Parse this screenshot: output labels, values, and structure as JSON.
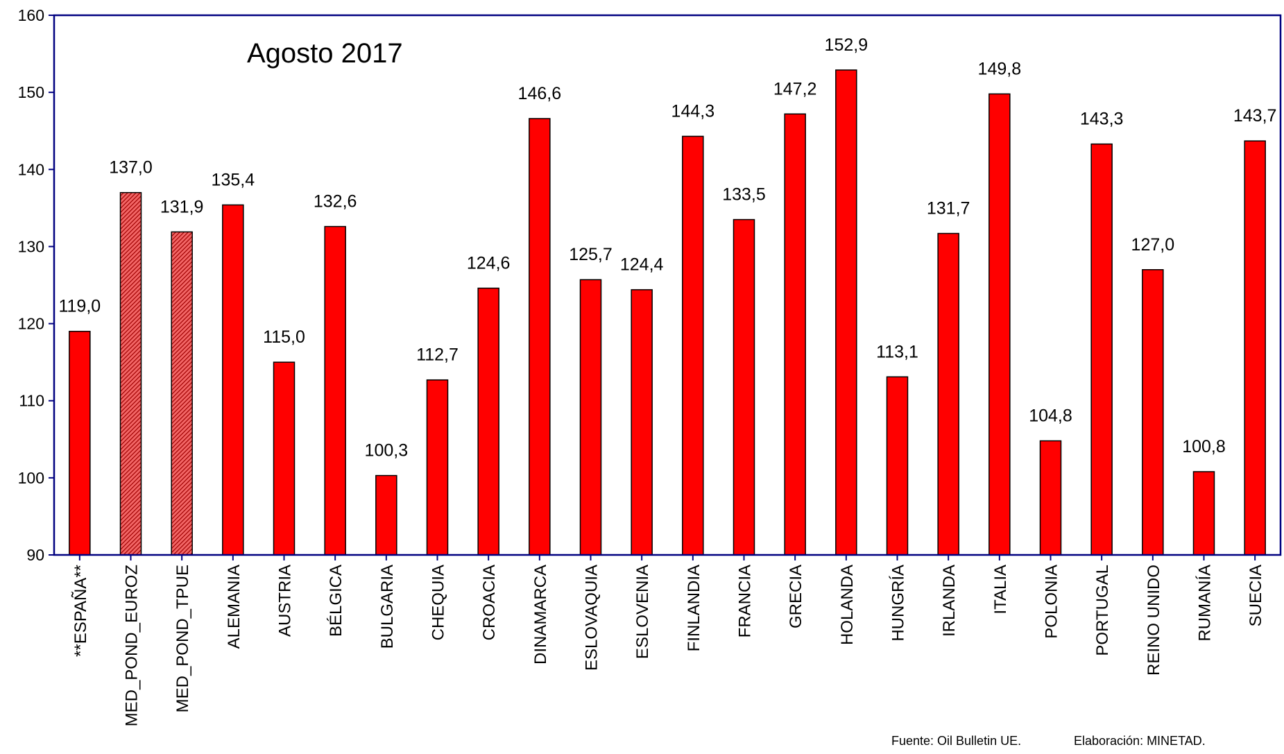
{
  "chart_data": {
    "type": "bar",
    "title": "Agosto 2017",
    "xlabel": "",
    "ylabel": "",
    "ylim": [
      90,
      160
    ],
    "yticks": [
      90,
      100,
      110,
      120,
      130,
      140,
      150,
      160
    ],
    "grid": false,
    "legend": "none",
    "categories": [
      "**ESPAÑA**",
      "MED_POND_EUROZ",
      "MED_POND_TPUE",
      "ALEMANIA",
      "AUSTRIA",
      "BÉLGICA",
      "BULGARIA",
      "CHEQUIA",
      "CROACIA",
      "DINAMARCA",
      "ESLOVAQUIA",
      "ESLOVENIA",
      "FINLANDIA",
      "FRANCIA",
      "GRECIA",
      "HOLANDA",
      "HUNGRÍA",
      "IRLANDA",
      "ITALIA",
      "POLONIA",
      "PORTUGAL",
      "REINO UNIDO",
      "RUMANÍA",
      "SUECIA"
    ],
    "values": [
      119.0,
      137.0,
      131.9,
      135.4,
      115.0,
      132.6,
      100.3,
      112.7,
      124.6,
      146.6,
      125.7,
      124.4,
      144.3,
      133.5,
      147.2,
      152.9,
      113.1,
      131.7,
      149.8,
      104.8,
      143.3,
      127.0,
      100.8,
      143.7
    ],
    "value_labels": [
      "119,0",
      "137,0",
      "131,9",
      "135,4",
      "115,0",
      "132,6",
      "100,3",
      "112,7",
      "124,6",
      "146,6",
      "125,7",
      "124,4",
      "144,3",
      "133,5",
      "147,2",
      "152,9",
      "113,1",
      "131,7",
      "149,8",
      "104,8",
      "143,3",
      "127,0",
      "100,8",
      "143,7"
    ],
    "hatched": [
      "MED_POND_EUROZ",
      "MED_POND_TPUE"
    ],
    "colors": {
      "bar": "#ff0000",
      "hatched_bar": "#f26666",
      "axis": "#000080",
      "bar_edge": "#000000"
    }
  },
  "footer": {
    "source": "Fuente: Oil Bulletin UE.",
    "credit": "Elaboración: MINETAD."
  }
}
